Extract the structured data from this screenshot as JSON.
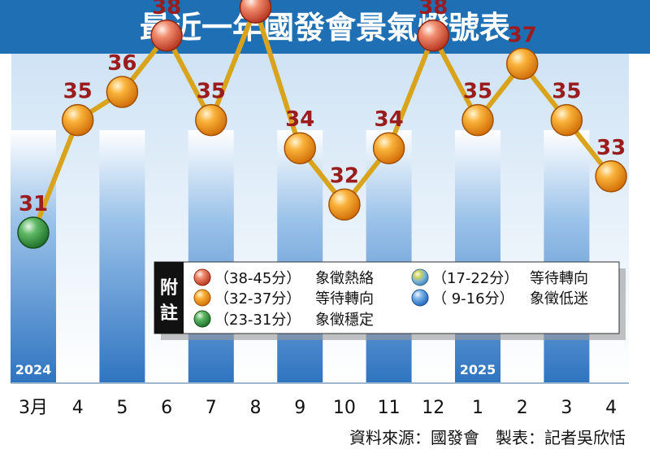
{
  "chart_data": {
    "type": "line",
    "title": "最近一年國發會景氣燈號表",
    "categories": [
      "3月",
      "4",
      "5",
      "6",
      "7",
      "8",
      "9",
      "10",
      "11",
      "12",
      "1",
      "2",
      "3",
      "4"
    ],
    "values": [
      31,
      35,
      36,
      38,
      35,
      39,
      34,
      32,
      34,
      38,
      35,
      37,
      35,
      33
    ],
    "year_labels": [
      {
        "text": "2024",
        "index": 0
      },
      {
        "text": "2025",
        "index": 10
      }
    ],
    "legend": {
      "title": "附註",
      "placement": "bottom-right",
      "items": [
        {
          "range": "（38-45分）",
          "desc": "象徵熱絡",
          "color": "#d9472b"
        },
        {
          "range": "（32-37分）",
          "desc": "等待轉向",
          "color": "#f0900f"
        },
        {
          "range": "（23-31分）",
          "desc": "象徵穩定",
          "color": "#2e8b3a"
        },
        {
          "range": "（17-22分）",
          "desc": "等待轉向",
          "color": "#8fbf4a"
        },
        {
          "range": "（  9-16分）",
          "desc": "象徵低迷",
          "color": "#3b8ddf"
        }
      ]
    },
    "ylim": [
      0,
      45
    ],
    "grid": false
  },
  "source": "資料來源：國發會　製表：記者吳欣恬",
  "colors": {
    "banner": "#1f6fb5",
    "bar": "#3f83c8",
    "line": "#d9a41c",
    "red_light": "#d9472b",
    "yellow_red_light": "#f0900f",
    "green_light": "#2e8b3a",
    "value_text": "#9b1c1c"
  }
}
